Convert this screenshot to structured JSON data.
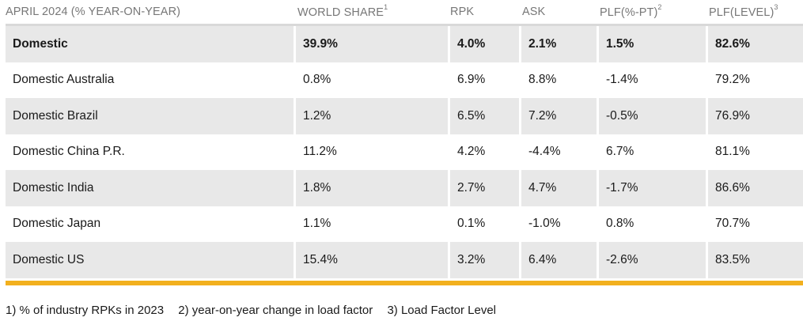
{
  "header": {
    "col1": "APRIL 2024 (% YEAR-ON-YEAR)",
    "col2": "WORLD SHARE",
    "col2_sup": "1",
    "col3": "RPK",
    "col4": "ASK",
    "col5": "PLF(%-PT)",
    "col5_sup": "2",
    "col6": "PLF(LEVEL)",
    "col6_sup": "3"
  },
  "rows": [
    {
      "market": "Domestic",
      "world_share": "39.9%",
      "rpk": "4.0%",
      "ask": "2.1%",
      "plf_pt": "1.5%",
      "plf_level": "82.6%"
    },
    {
      "market": "Domestic Australia",
      "world_share": "0.8%",
      "rpk": "6.9%",
      "ask": "8.8%",
      "plf_pt": "-1.4%",
      "plf_level": "79.2%"
    },
    {
      "market": "Domestic Brazil",
      "world_share": "1.2%",
      "rpk": "6.5%",
      "ask": "7.2%",
      "plf_pt": "-0.5%",
      "plf_level": "76.9%"
    },
    {
      "market": "Domestic China P.R.",
      "world_share": "11.2%",
      "rpk": "4.2%",
      "ask": "-4.4%",
      "plf_pt": "6.7%",
      "plf_level": "81.1%"
    },
    {
      "market": "Domestic India",
      "world_share": "1.8%",
      "rpk": "2.7%",
      "ask": "4.7%",
      "plf_pt": "-1.7%",
      "plf_level": "86.6%"
    },
    {
      "market": "Domestic Japan",
      "world_share": "1.1%",
      "rpk": "0.1%",
      "ask": "-1.0%",
      "plf_pt": "0.8%",
      "plf_level": "70.7%"
    },
    {
      "market": "Domestic US",
      "world_share": "15.4%",
      "rpk": "3.2%",
      "ask": "6.4%",
      "plf_pt": "-2.6%",
      "plf_level": "83.5%"
    }
  ],
  "footnotes": [
    "1) % of industry RPKs in 2023",
    "2) year-on-year change in load factor",
    "3) Load Factor Level"
  ],
  "colors": {
    "accent_rule": "#f2b01e",
    "shaded_row": "#e8e8e8",
    "header_text": "#777777"
  }
}
